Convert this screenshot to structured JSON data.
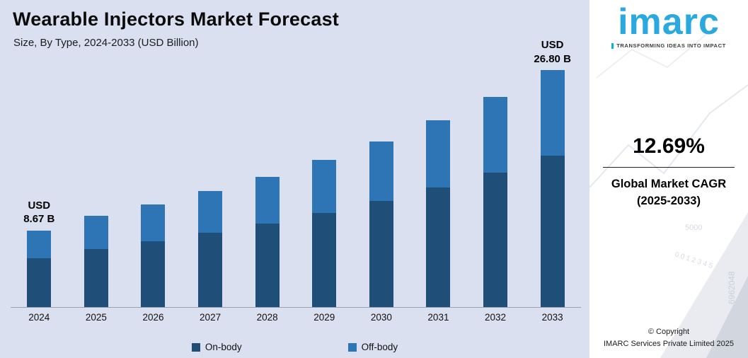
{
  "header": {
    "title": "Wearable Injectors Market Forecast",
    "subtitle": "Size, By Type, 2024-2033 (USD Billion)"
  },
  "chart_data": {
    "type": "bar",
    "stacked": true,
    "title": "Wearable Injectors Market Forecast",
    "subtitle": "Size, By Type, 2024-2033 (USD Billion)",
    "unit": "USD Billion",
    "categories": [
      "2024",
      "2025",
      "2026",
      "2027",
      "2028",
      "2029",
      "2030",
      "2031",
      "2032",
      "2033"
    ],
    "series": [
      {
        "name": "On-body",
        "color": "#1F4E79",
        "values": [
          5.55,
          6.6,
          7.44,
          8.38,
          9.44,
          10.64,
          11.99,
          13.52,
          15.23,
          17.15
        ]
      },
      {
        "name": "Off-body",
        "color": "#2E75B6",
        "values": [
          3.12,
          3.71,
          4.18,
          4.71,
          5.31,
          5.99,
          6.75,
          7.6,
          8.57,
          9.65
        ]
      }
    ],
    "totals": [
      8.67,
      10.31,
      11.62,
      13.09,
      14.75,
      16.63,
      18.74,
      21.12,
      23.8,
      26.8
    ],
    "ylim": [
      0,
      26.8
    ],
    "grid": false,
    "legend_position": "bottom",
    "annotations": [
      {
        "category": "2024",
        "lines": [
          "USD",
          "8.67 B"
        ]
      },
      {
        "category": "2033",
        "lines": [
          "USD",
          "26.80 B"
        ]
      }
    ]
  },
  "legend": {
    "items": [
      {
        "label": "On-body",
        "color": "#1F4E79"
      },
      {
        "label": "Off-body",
        "color": "#2E75B6"
      }
    ]
  },
  "sidebar": {
    "logo": "imarc",
    "tagline": "TRANSFORMING IDEAS INTO IMPACT",
    "cagr": {
      "value": "12.69%",
      "label_line1": "Global Market CAGR",
      "label_line2": "(2025-2033)"
    },
    "copyright": {
      "line1": "© Copyright",
      "line2": "IMARC Services Private Limited 2025"
    },
    "watermark": {
      "vertical_number": "6962048",
      "number": "5000",
      "axis_ticks": "0.0  1  2  3  4  5"
    }
  },
  "colors": {
    "background": "#DBE0F1",
    "panel": "#FFFFFF",
    "brand_blue": "#29A9E0",
    "bar_dark": "#1F4E79",
    "bar_light": "#2E75B6"
  }
}
